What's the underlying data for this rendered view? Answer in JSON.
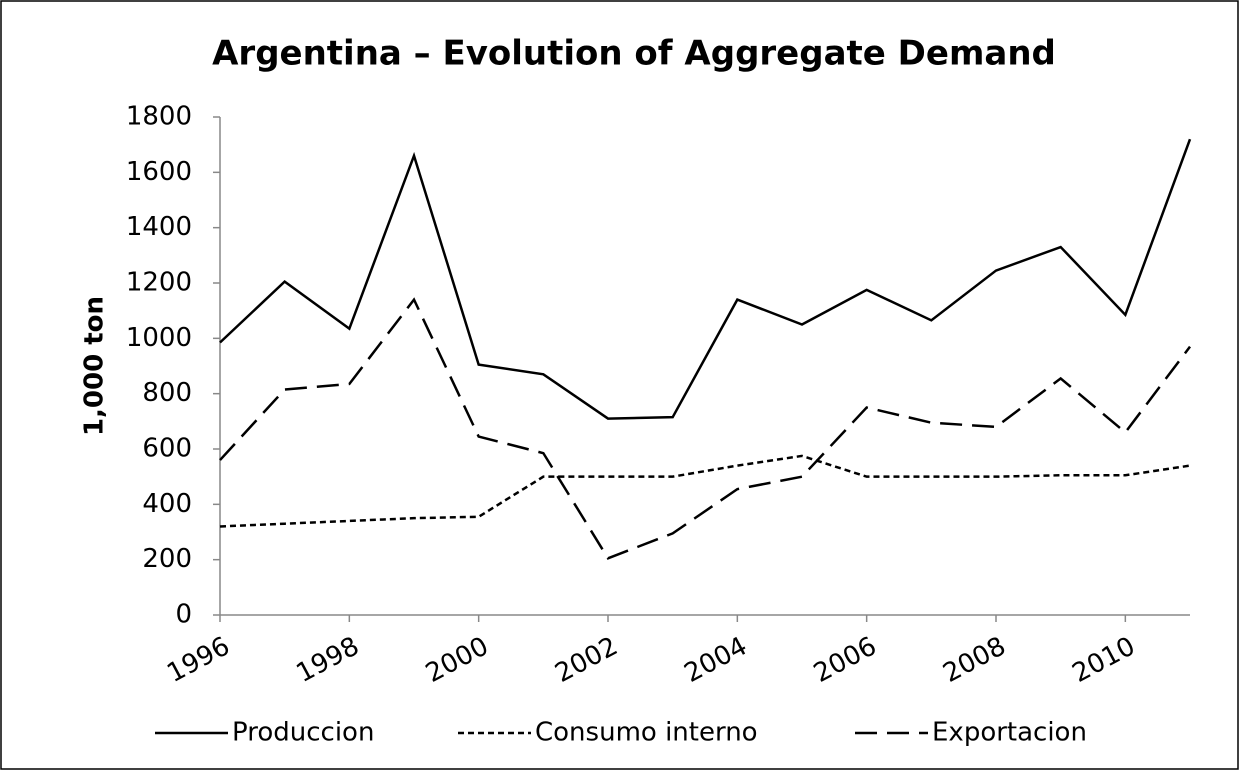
{
  "chart_data": {
    "type": "line",
    "title": "Argentina – Evolution of Aggregate Demand",
    "y_label": "1,000 ton",
    "x": [
      1996,
      1997,
      1998,
      1999,
      2000,
      2001,
      2002,
      2003,
      2004,
      2005,
      2006,
      2007,
      2008,
      2009,
      2010,
      2011
    ],
    "series": [
      {
        "name": "Produccion",
        "color": "#000000",
        "dash": "solid",
        "values": [
          985,
          1205,
          1035,
          1660,
          905,
          870,
          710,
          715,
          1140,
          1050,
          1175,
          1065,
          1245,
          1330,
          1085,
          1720
        ]
      },
      {
        "name": "Consumo interno",
        "color": "#000000",
        "dash": "dotted",
        "values": [
          320,
          330,
          340,
          350,
          355,
          500,
          500,
          500,
          540,
          575,
          500,
          500,
          500,
          505,
          505,
          540
        ]
      },
      {
        "name": "Exportacion",
        "color": "#000000",
        "dash": "dashed",
        "values": [
          560,
          815,
          835,
          1140,
          645,
          585,
          205,
          295,
          455,
          500,
          750,
          695,
          680,
          855,
          660,
          970
        ]
      }
    ],
    "xlim": [
      1996,
      2011
    ],
    "xticks": [
      1996,
      1998,
      2000,
      2002,
      2004,
      2006,
      2008,
      2010
    ],
    "ylim": [
      0,
      1800
    ],
    "yticks": [
      0,
      200,
      400,
      600,
      800,
      1000,
      1200,
      1400,
      1600,
      1800
    ],
    "grid": false,
    "legend": "bottom"
  }
}
